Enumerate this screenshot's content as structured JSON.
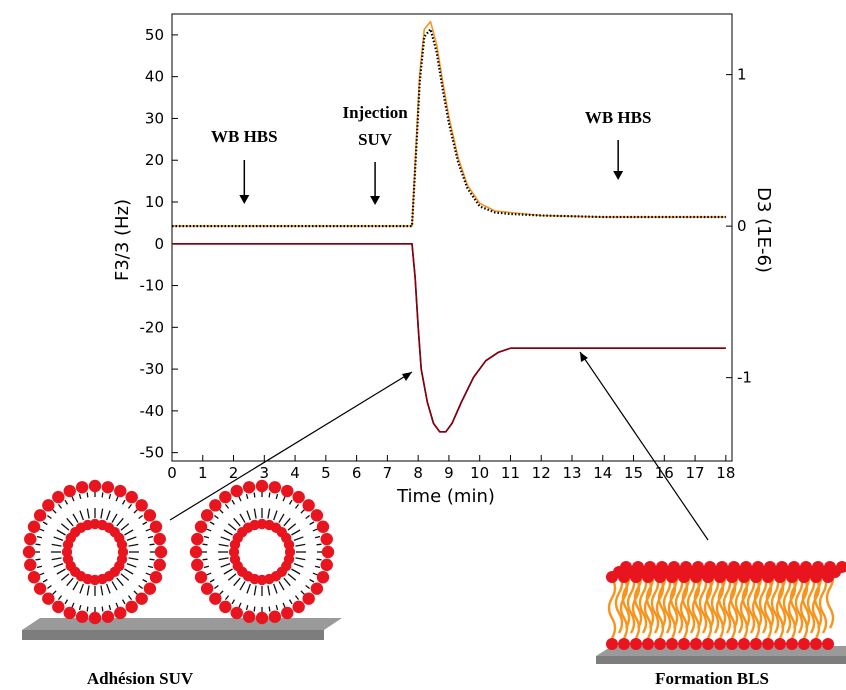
{
  "chart_data": {
    "type": "line",
    "xlabel": "Time (min)",
    "ylabel_left": "F3/3 (Hz)",
    "ylabel_right": "D3 (1E-6)",
    "xlim": [
      0,
      18.2
    ],
    "ylim_left": [
      -52,
      55
    ],
    "ylim_right": [
      -1.55,
      1.4
    ],
    "x_ticks": [
      0,
      1,
      2,
      3,
      4,
      5,
      6,
      7,
      8,
      9,
      10,
      11,
      12,
      13,
      14,
      15,
      16,
      17,
      18
    ],
    "y_ticks_left": [
      50,
      40,
      30,
      20,
      10,
      0,
      -10,
      -20,
      -30,
      -40,
      -50
    ],
    "y_ticks_right": [
      1,
      0,
      -1
    ],
    "grid": false,
    "series": [
      {
        "axis": "right",
        "color": "#f7941d",
        "x": [
          0,
          2,
          4,
          6,
          7.8,
          7.95,
          8.05,
          8.2,
          8.4,
          8.6,
          8.8,
          9.0,
          9.3,
          9.6,
          10.0,
          10.5,
          11,
          12,
          14,
          16,
          18
        ],
        "y": [
          0.0,
          0.0,
          0.0,
          0.0,
          0.0,
          0.6,
          1.0,
          1.3,
          1.35,
          1.2,
          0.95,
          0.72,
          0.45,
          0.27,
          0.15,
          0.1,
          0.09,
          0.07,
          0.06,
          0.06,
          0.06
        ]
      },
      {
        "axis": "right",
        "color": "#000000",
        "style": "dotted",
        "x": [
          0,
          2,
          4,
          6,
          7.8,
          7.95,
          8.05,
          8.2,
          8.4,
          8.6,
          8.8,
          9.0,
          9.3,
          9.6,
          10.0,
          10.5,
          11,
          12,
          14,
          16,
          18
        ],
        "y": [
          0.0,
          0.0,
          0.0,
          0.0,
          0.0,
          0.55,
          0.95,
          1.25,
          1.3,
          1.15,
          0.9,
          0.68,
          0.42,
          0.25,
          0.13,
          0.09,
          0.08,
          0.07,
          0.06,
          0.06,
          0.06
        ]
      },
      {
        "axis": "left",
        "color": "#1f1fc8",
        "x": [
          0,
          2,
          4,
          6,
          7.8,
          7.9,
          8.0,
          8.1,
          8.3,
          8.5,
          8.7,
          8.9,
          9.1,
          9.4,
          9.8,
          10.2,
          10.6,
          11,
          12,
          14,
          16,
          18
        ],
        "y": [
          0,
          0,
          0,
          0,
          0,
          -8,
          -20,
          -30,
          -38,
          -43,
          -45,
          -45,
          -43,
          -38,
          -32,
          -28,
          -26,
          -25,
          -25,
          -25,
          -25,
          -25
        ]
      },
      {
        "axis": "left",
        "color": "#8b0000",
        "x": [
          0,
          2,
          4,
          6,
          7.8,
          7.9,
          8.0,
          8.1,
          8.3,
          8.5,
          8.7,
          8.9,
          9.1,
          9.4,
          9.8,
          10.2,
          10.6,
          11,
          12,
          14,
          16,
          18
        ],
        "y": [
          0,
          0,
          0,
          0,
          0,
          -8,
          -20,
          -30,
          -38,
          -43,
          -45,
          -45,
          -43,
          -38,
          -32,
          -28,
          -26,
          -25,
          -25,
          -25,
          -25,
          -25
        ]
      }
    ],
    "annotations": [
      {
        "lines": [
          "WB HBS"
        ],
        "x": 2.35
      },
      {
        "lines": [
          "Injection",
          "SUV"
        ],
        "x": 6.6
      },
      {
        "lines": [
          "WB HBS"
        ],
        "x": 14.5
      }
    ]
  },
  "captions": {
    "left": "Adhésion SUV",
    "right": "Formation BLS"
  },
  "colors": {
    "lipid_head": "#e8141e",
    "lipid_tail_right": "#f7941d",
    "substrate": "#9a9a9a"
  }
}
